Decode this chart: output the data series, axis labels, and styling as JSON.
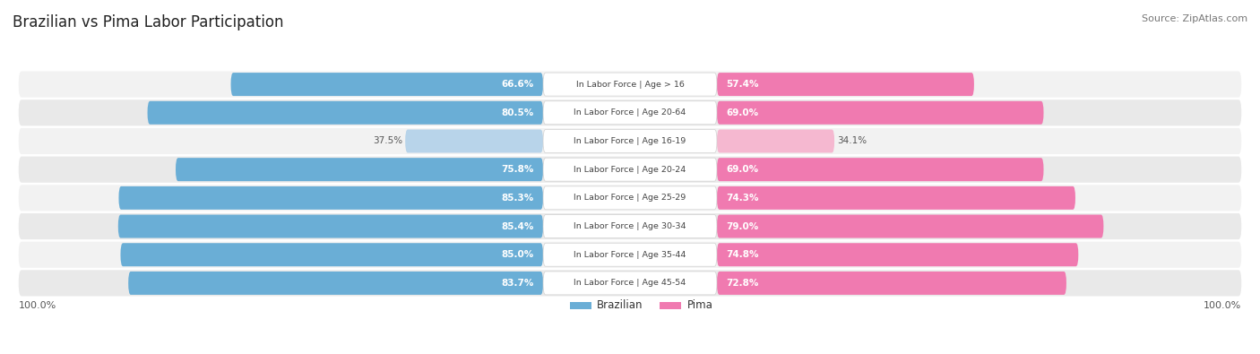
{
  "title": "Brazilian vs Pima Labor Participation",
  "source": "Source: ZipAtlas.com",
  "categories": [
    "In Labor Force | Age > 16",
    "In Labor Force | Age 20-64",
    "In Labor Force | Age 16-19",
    "In Labor Force | Age 20-24",
    "In Labor Force | Age 25-29",
    "In Labor Force | Age 30-34",
    "In Labor Force | Age 35-44",
    "In Labor Force | Age 45-54"
  ],
  "brazilian": [
    66.6,
    80.5,
    37.5,
    75.8,
    85.3,
    85.4,
    85.0,
    83.7
  ],
  "pima": [
    57.4,
    69.0,
    34.1,
    69.0,
    74.3,
    79.0,
    74.8,
    72.8
  ],
  "brazilian_color": "#6aaed6",
  "brazilian_light_color": "#b8d4ea",
  "pima_color": "#f07ab0",
  "pima_light_color": "#f5b8d0",
  "row_bg_even": "#f2f2f2",
  "row_bg_odd": "#e9e9e9",
  "axis_label_left": "100.0%",
  "axis_label_right": "100.0%",
  "max_val": 100.0,
  "legend_brazilian": "Brazilian",
  "legend_pima": "Pima"
}
